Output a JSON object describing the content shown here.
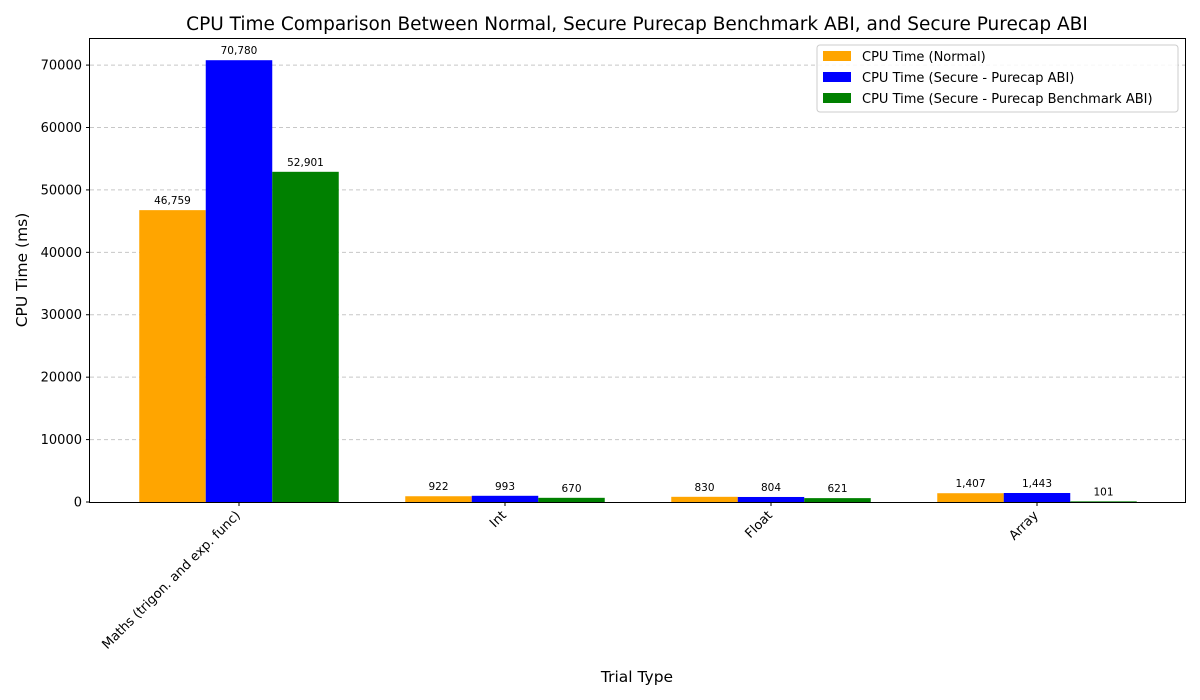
{
  "chart_data": {
    "type": "bar",
    "title": "CPU Time Comparison Between Normal, Secure Purecap Benchmark ABI, and Secure Purecap ABI",
    "xlabel": "Trial Type",
    "ylabel": "CPU Time (ms)",
    "categories": [
      "Maths (trigon. and exp. func)",
      "Int",
      "Float",
      "Array"
    ],
    "series": [
      {
        "name": "CPU Time (Normal)",
        "color": "#FFA500",
        "values": [
          46759,
          922,
          830,
          1407
        ],
        "labels": [
          "46,759",
          "922",
          "830",
          "1,407"
        ]
      },
      {
        "name": "CPU Time (Secure - Purecap ABI)",
        "color": "#0000FF",
        "values": [
          70780,
          993,
          804,
          1443
        ],
        "labels": [
          "70,780",
          "993",
          "804",
          "1,443"
        ]
      },
      {
        "name": "CPU Time (Secure - Purecap Benchmark ABI)",
        "color": "#008000",
        "values": [
          52901,
          670,
          621,
          101
        ],
        "labels": [
          "52,901",
          "670",
          "621",
          "101"
        ]
      }
    ],
    "ylim": [
      0,
      74339
    ],
    "yticks": [
      0,
      10000,
      20000,
      30000,
      40000,
      50000,
      60000,
      70000
    ],
    "ytick_labels": [
      "0",
      "10000",
      "20000",
      "30000",
      "40000",
      "50000",
      "60000",
      "70000"
    ],
    "grid": "y-dashed",
    "legend_position": "top-right"
  }
}
